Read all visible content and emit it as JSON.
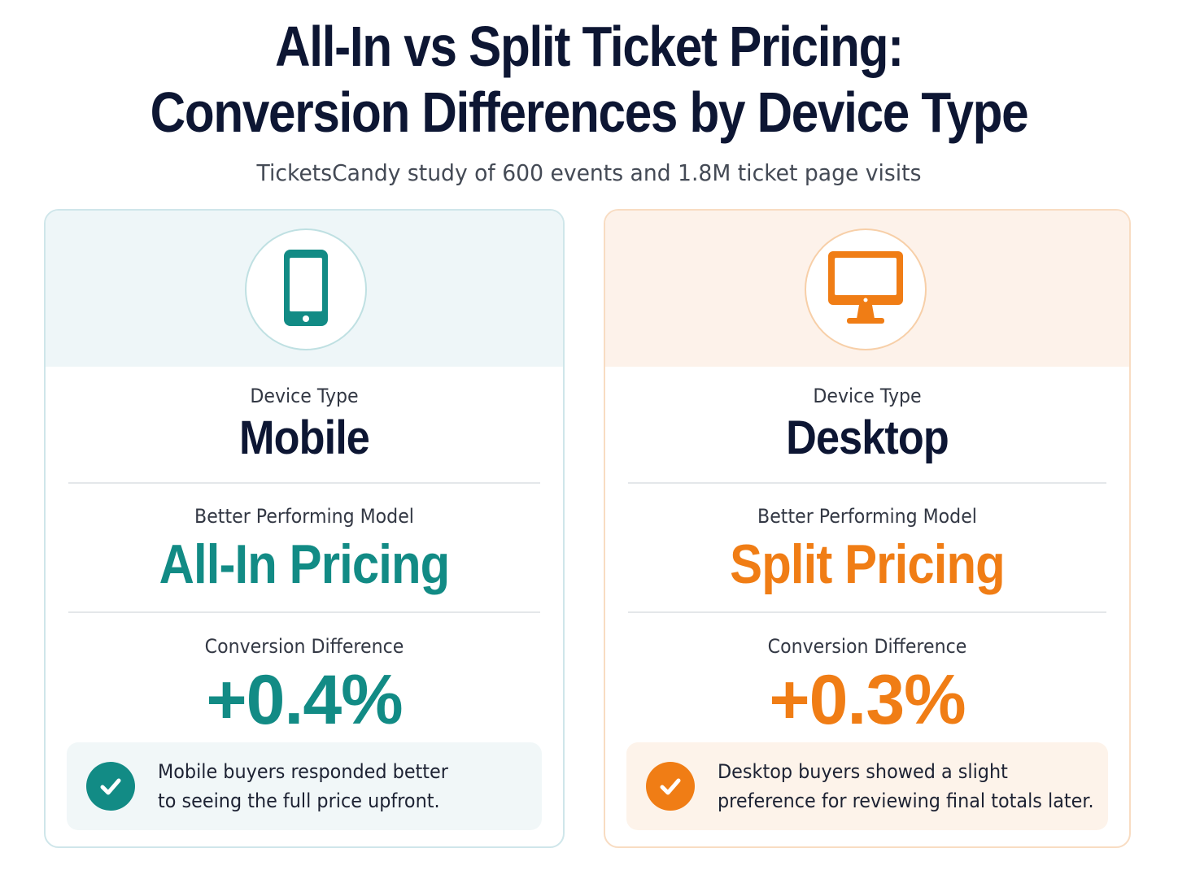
{
  "title": {
    "line1": "All-In vs Split Ticket Pricing:",
    "line2": "Conversion Differences by Device Type"
  },
  "subtitle": "TicketsCandy study of 600 events and 1.8M ticket page visits",
  "colors": {
    "mobile_accent": "#128b85",
    "desktop_accent": "#f07d15",
    "title": "#0d1633"
  },
  "cards": [
    {
      "icon": "smartphone-icon",
      "device_label": "Device Type",
      "device_name": "Mobile",
      "model_label": "Better Performing Model",
      "model_name": "All-In Pricing",
      "conversion_label": "Conversion Difference",
      "conversion_value": "+0.4%",
      "note_icon": "check-circle-icon",
      "note_line1": "Mobile buyers responded better",
      "note_line2": "to seeing the full price upfront."
    },
    {
      "icon": "desktop-monitor-icon",
      "device_label": "Device Type",
      "device_name": "Desktop",
      "model_label": "Better Performing Model",
      "model_name": "Split Pricing",
      "conversion_label": "Conversion Difference",
      "conversion_value": "+0.3%",
      "note_icon": "check-circle-icon",
      "note_line1": "Desktop buyers showed a slight",
      "note_line2": "preference for reviewing final totals later."
    }
  ]
}
